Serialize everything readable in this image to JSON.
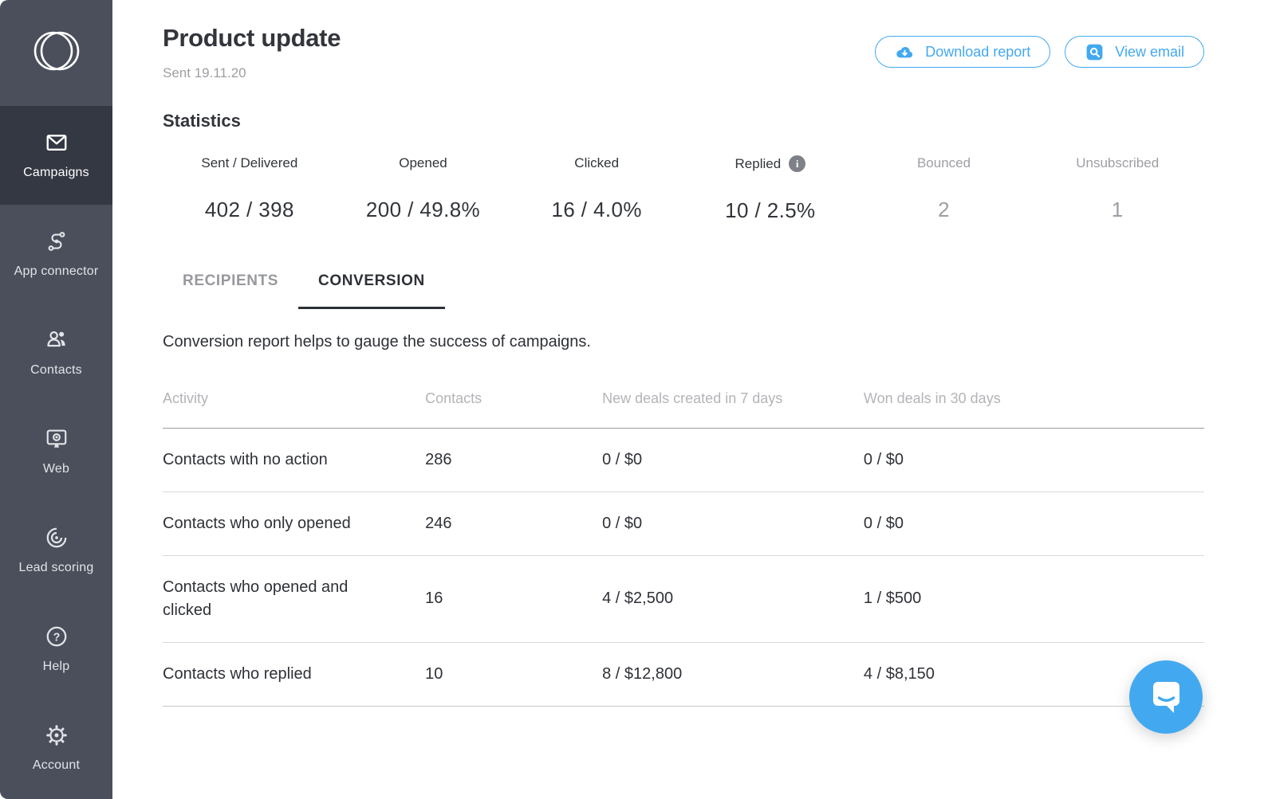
{
  "colors": {
    "accent": "#42a9f0",
    "sidebar-bg": "#4a4f5b",
    "sidebar-active-bg": "#343843",
    "text-dark": "#32353b",
    "text-gray": "#9d9ea3",
    "table-header-gray": "#b3b4b8",
    "info-badge-bg": "#7e8187"
  },
  "sidebar": {
    "logo_icon": "overlapping-circles-logo-icon",
    "items": [
      {
        "label": "Campaigns",
        "icon": "envelope-icon",
        "active": true
      },
      {
        "label": "App connector",
        "icon": "connector-icon",
        "active": false
      },
      {
        "label": "Contacts",
        "icon": "contacts-icon",
        "active": false
      },
      {
        "label": "Web",
        "icon": "monitor-eye-icon",
        "active": false
      },
      {
        "label": "Lead scoring",
        "icon": "gauge-icon",
        "active": false
      },
      {
        "label": "Help",
        "icon": "question-circle-icon",
        "active": false
      },
      {
        "label": "Account",
        "icon": "gear-icon",
        "active": false
      }
    ]
  },
  "header": {
    "title": "Product update",
    "subtitle": "Sent 19.11.20",
    "download_button": "Download report",
    "view_button": "View email"
  },
  "statistics": {
    "heading": "Statistics",
    "metrics": [
      {
        "label": "Sent / Delivered",
        "value": "402 / 398",
        "muted": false,
        "info": false
      },
      {
        "label": "Opened",
        "value": "200 / 49.8%",
        "muted": false,
        "info": false
      },
      {
        "label": "Clicked",
        "value": "16 / 4.0%",
        "muted": false,
        "info": false
      },
      {
        "label": "Replied",
        "value": "10 / 2.5%",
        "muted": false,
        "info": true
      },
      {
        "label": "Bounced",
        "value": "2",
        "muted": true,
        "info": false
      },
      {
        "label": "Unsubscribed",
        "value": "1",
        "muted": true,
        "info": false
      }
    ],
    "info_badge_glyph": "i"
  },
  "tabs": [
    {
      "label": "RECIPIENTS",
      "active": false
    },
    {
      "label": "CONVERSION",
      "active": true
    }
  ],
  "conversion": {
    "description": "Conversion report helps to gauge the success of campaigns.",
    "table": {
      "columns": [
        "Activity",
        "Contacts",
        "New deals created in 7 days",
        "Won deals in 30 days"
      ],
      "rows": [
        {
          "activity": "Contacts with no action",
          "contacts": "286",
          "new_deals": "0 / $0",
          "won_deals": "0 / $0"
        },
        {
          "activity": "Contacts who only opened",
          "contacts": "246",
          "new_deals": "0 / $0",
          "won_deals": "0 / $0"
        },
        {
          "activity": "Contacts who opened and clicked",
          "contacts": "16",
          "new_deals": "4 / $2,500",
          "won_deals": "1 / $500"
        },
        {
          "activity": "Contacts who replied",
          "contacts": "10",
          "new_deals": "8 / $12,800",
          "won_deals": "4 / $8,150"
        }
      ]
    }
  },
  "chat": {
    "icon": "chat-bubble-launcher-icon"
  }
}
